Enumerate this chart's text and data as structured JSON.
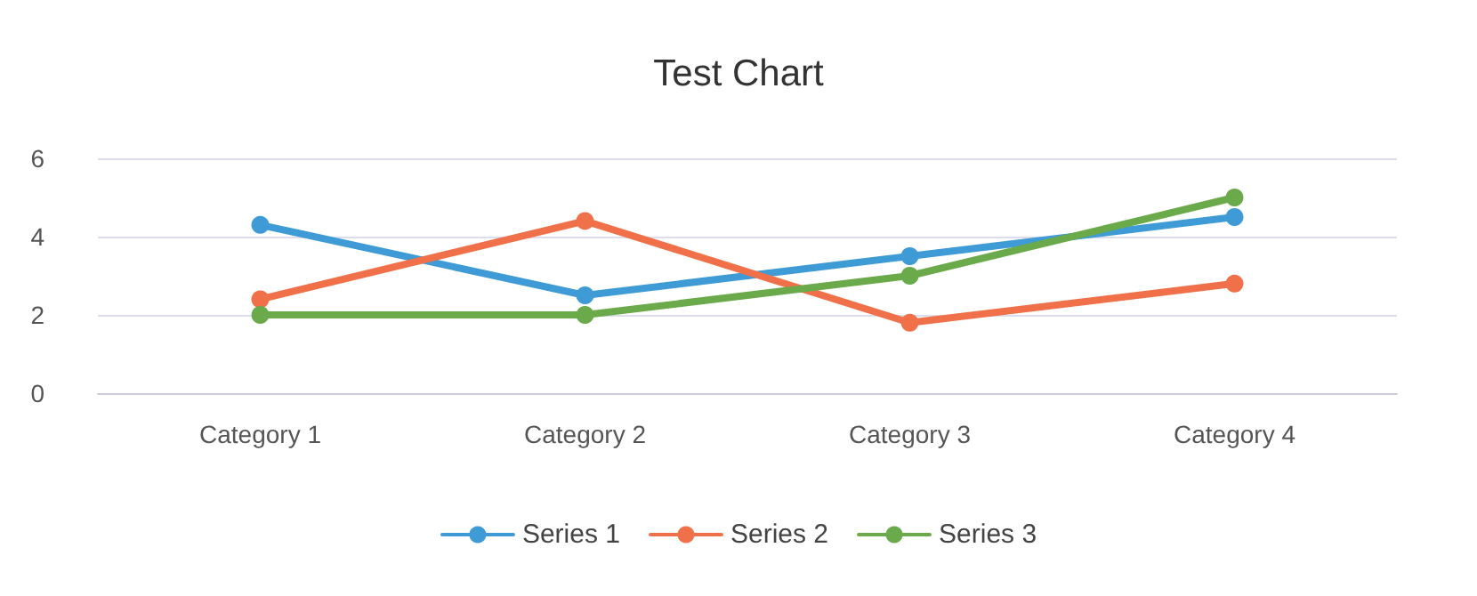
{
  "chart_data": {
    "type": "line",
    "title": "Test Chart",
    "categories": [
      "Category 1",
      "Category 2",
      "Category 3",
      "Category 4"
    ],
    "series": [
      {
        "name": "Series 1",
        "color": "#3e9bd6",
        "values": [
          4.3,
          2.5,
          3.5,
          4.5
        ]
      },
      {
        "name": "Series 2",
        "color": "#f0704a",
        "values": [
          2.4,
          4.4,
          1.8,
          2.8
        ]
      },
      {
        "name": "Series 3",
        "color": "#6aaa4a",
        "values": [
          2,
          2,
          3,
          5
        ]
      }
    ],
    "ylim": [
      0,
      6
    ],
    "yticks": [
      0,
      2,
      4,
      6
    ],
    "grid": "y",
    "legend": "bottom",
    "marker": "circle",
    "line_style": "solid"
  }
}
